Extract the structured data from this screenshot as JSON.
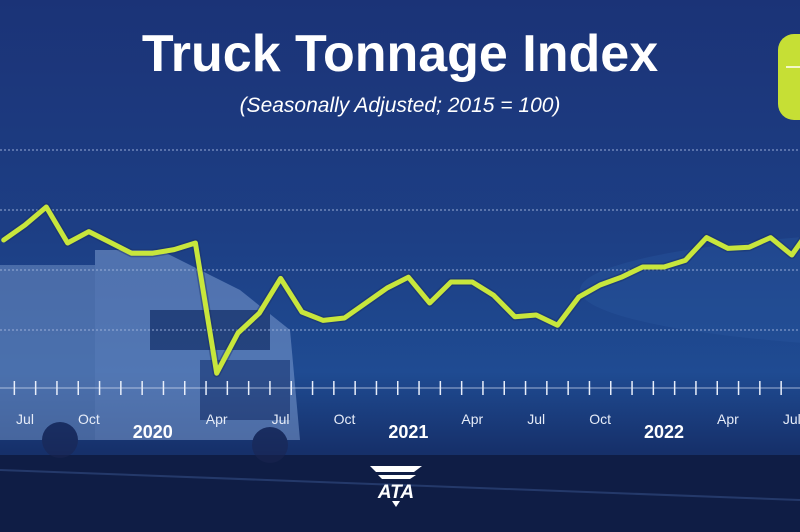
{
  "chart_data": {
    "type": "line",
    "title": "Truck Tonnage Index",
    "subtitle": "(Seasonally Adjusted; 2015 = 100)",
    "xlabel": "",
    "ylabel": "",
    "grid": true,
    "ylim": [
      100,
      120
    ],
    "x": [
      "2019-06",
      "2019-07",
      "2019-08",
      "2019-09",
      "2019-10",
      "2019-11",
      "2019-12",
      "2020-01",
      "2020-02",
      "2020-03",
      "2020-04",
      "2020-05",
      "2020-06",
      "2020-07",
      "2020-08",
      "2020-09",
      "2020-10",
      "2020-11",
      "2020-12",
      "2021-01",
      "2021-02",
      "2021-03",
      "2021-04",
      "2021-05",
      "2021-06",
      "2021-07",
      "2021-08",
      "2021-09",
      "2021-10",
      "2021-11",
      "2021-12",
      "2022-01",
      "2022-02",
      "2022-03",
      "2022-04",
      "2022-05",
      "2022-06",
      "2022-07",
      "2022-08"
    ],
    "series": [
      {
        "values": [
          112.5,
          113.75,
          115.25,
          112.25,
          113.2,
          112.3,
          111.4,
          111.4,
          111.7,
          112.25,
          101.4,
          104.75,
          106.4,
          109.3,
          106.5,
          105.8,
          106,
          107.25,
          108.5,
          109.4,
          107.25,
          109,
          109,
          107.9,
          106.1,
          106.25,
          105.4,
          107.75,
          108.75,
          109.4,
          110.25,
          110.25,
          110.8,
          112.7,
          111.8,
          111.9,
          112.7,
          111.25,
          113.75
        ],
        "color": "#c8e63c"
      }
    ],
    "month_ticks": [
      {
        "label": "Jul",
        "x": "2019-07"
      },
      {
        "label": "Oct",
        "x": "2019-10"
      },
      {
        "label": "Apr",
        "x": "2020-04"
      },
      {
        "label": "Jul",
        "x": "2020-07"
      },
      {
        "label": "Oct",
        "x": "2020-10"
      },
      {
        "label": "Apr",
        "x": "2021-04"
      },
      {
        "label": "Jul",
        "x": "2021-07"
      },
      {
        "label": "Oct",
        "x": "2021-10"
      },
      {
        "label": "Apr",
        "x": "2022-04"
      },
      {
        "label": "Jul",
        "x": "2022-07"
      }
    ],
    "year_labels": [
      {
        "label": "2020",
        "x": "2020-01"
      },
      {
        "label": "2021",
        "x": "2021-01"
      },
      {
        "label": "2022",
        "x": "2022-01"
      }
    ]
  },
  "logo": "ATA",
  "colors": {
    "background": "#1d3f85",
    "line": "#c8e63c",
    "badge": "#c6df35"
  }
}
